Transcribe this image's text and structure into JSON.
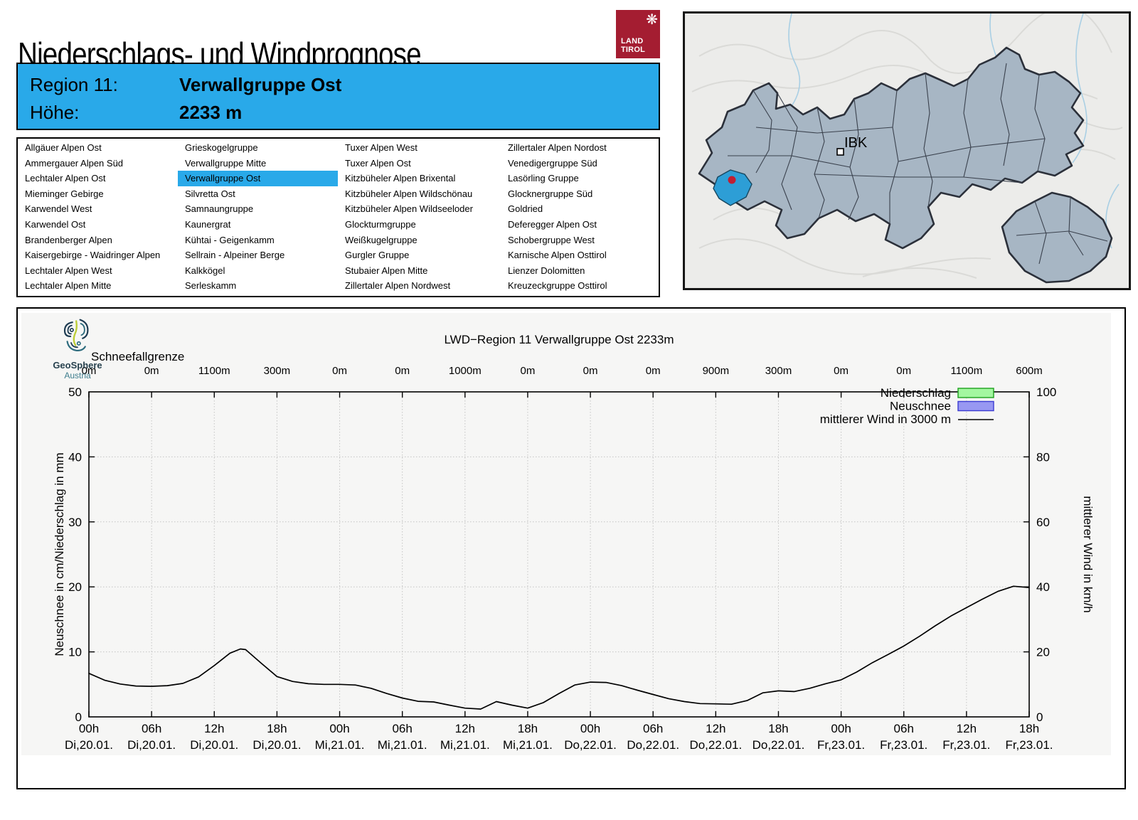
{
  "header": {
    "title": "Niederschlags- und Windprognose",
    "logo": {
      "line1": "LAND",
      "line2": "TIROL",
      "color": "#a41d31",
      "eagle_glyph": "❋"
    }
  },
  "info_box": {
    "accent_color": "#29a9e9",
    "region_label": "Region 11:",
    "region_value": "Verwallgruppe Ost",
    "altitude_label": "Höhe:",
    "altitude_value": "2233 m"
  },
  "region_list": {
    "selected": "Verwallgruppe Ost",
    "highlight_color": "#29a9e9",
    "columns": [
      [
        "Allgäuer Alpen Ost",
        "Ammergauer Alpen Süd",
        "Lechtaler Alpen Ost",
        "Mieminger Gebirge",
        "Karwendel West",
        "Karwendel Ost",
        "Brandenberger Alpen",
        "Kaisergebirge - Waidringer Alpen",
        "Lechtaler Alpen West",
        "Lechtaler Alpen Mitte"
      ],
      [
        "Grieskogelgruppe",
        "Verwallgruppe Mitte",
        "Verwallgruppe Ost",
        "Silvretta Ost",
        "Samnaungruppe",
        "Kaunergrat",
        "Kühtai - Geigenkamm",
        "Sellrain - Alpeiner Berge",
        "Kalkkögel",
        "Serleskamm"
      ],
      [
        "Tuxer Alpen West",
        "Tuxer Alpen Ost",
        "Kitzbüheler Alpen Brixental",
        "Kitzbüheler Alpen Wildschönau",
        "Kitzbüheler Alpen Wildseeloder",
        "Glockturmgruppe",
        "Weißkugelgruppe",
        "Gurgler Gruppe",
        "Stubaier Alpen Mitte",
        "Zillertaler Alpen Nordwest"
      ],
      [
        "Zillertaler Alpen Nordost",
        "Venedigergruppe Süd",
        "Lasörling Gruppe",
        "Glocknergruppe Süd",
        "Goldried",
        "Deferegger Alpen Ost",
        "Schobergruppe West",
        "Karnische Alpen Osttirol",
        "Lienzer Dolomitten",
        "Kreuzeckgruppe Osttirol"
      ]
    ]
  },
  "map": {
    "city_label": "IBK",
    "region_fill": "#a7b6c4",
    "selected_region_fill": "#2d9ed6",
    "marker_color": "#c01f33"
  },
  "attribution": {
    "brand": "GeoSphere",
    "sub": "Austria"
  },
  "chart_data": {
    "type": "line",
    "title": "LWD−Region 11 Verwallgruppe Ost 2233m",
    "snowline_label": "Schneefallgrenze",
    "snowline_values": [
      "0m",
      "0m",
      "1100m",
      "300m",
      "0m",
      "0m",
      "1000m",
      "0m",
      "0m",
      "0m",
      "900m",
      "300m",
      "0m",
      "0m",
      "1100m",
      "600m"
    ],
    "x_ticks": [
      {
        "hour": "00h",
        "date": "Di,20.01."
      },
      {
        "hour": "06h",
        "date": "Di,20.01."
      },
      {
        "hour": "12h",
        "date": "Di,20.01."
      },
      {
        "hour": "18h",
        "date": "Di,20.01."
      },
      {
        "hour": "00h",
        "date": "Mi,21.01."
      },
      {
        "hour": "06h",
        "date": "Mi,21.01."
      },
      {
        "hour": "12h",
        "date": "Mi,21.01."
      },
      {
        "hour": "18h",
        "date": "Mi,21.01."
      },
      {
        "hour": "00h",
        "date": "Do,22.01."
      },
      {
        "hour": "06h",
        "date": "Do,22.01."
      },
      {
        "hour": "12h",
        "date": "Do,22.01."
      },
      {
        "hour": "18h",
        "date": "Do,22.01."
      },
      {
        "hour": "00h",
        "date": "Fr,23.01."
      },
      {
        "hour": "06h",
        "date": "Fr,23.01."
      },
      {
        "hour": "12h",
        "date": "Fr,23.01."
      },
      {
        "hour": "18h",
        "date": "Fr,23.01."
      }
    ],
    "x_span_hours": 90,
    "ylabel_left": "Neuschnee in cm/Niederschlag in mm",
    "ylabel_right": "mittlerer Wind in km/h",
    "ylim_left": [
      0,
      50
    ],
    "ylim_right": [
      0,
      100
    ],
    "yticks_left": [
      0,
      10,
      20,
      30,
      40,
      50
    ],
    "yticks_right": [
      0,
      20,
      40,
      60,
      80,
      100
    ],
    "grid": true,
    "legend_position": "top-right",
    "legend": [
      {
        "label": "Niederschlag",
        "type": "box",
        "fill": "#a3f7a0",
        "stroke": "#1ca01c"
      },
      {
        "label": "Neuschnee",
        "type": "box",
        "fill": "#9898f2",
        "stroke": "#3c3cd2"
      },
      {
        "label": "mittlerer Wind in 3000 m",
        "type": "line",
        "stroke": "#000000"
      }
    ],
    "series": [
      {
        "name": "Niederschlag",
        "unit": "mm",
        "values": []
      },
      {
        "name": "Neuschnee",
        "unit": "cm",
        "values": []
      },
      {
        "name": "mittlerer Wind in 3000 m",
        "unit": "km/h",
        "axis": "right",
        "points": [
          [
            0,
            13.4
          ],
          [
            1.5,
            11.3
          ],
          [
            3,
            10.1
          ],
          [
            4.5,
            9.5
          ],
          [
            6,
            9.4
          ],
          [
            7.5,
            9.6
          ],
          [
            9,
            10.3
          ],
          [
            10.5,
            12.3
          ],
          [
            12,
            15.8
          ],
          [
            13.5,
            19.6
          ],
          [
            14.5,
            20.9
          ],
          [
            15,
            20.7
          ],
          [
            16.5,
            16.5
          ],
          [
            18,
            12.4
          ],
          [
            19.5,
            10.9
          ],
          [
            21,
            10.2
          ],
          [
            22.5,
            10.0
          ],
          [
            24,
            10.0
          ],
          [
            25.5,
            9.8
          ],
          [
            27,
            8.8
          ],
          [
            28.5,
            7.2
          ],
          [
            30,
            5.8
          ],
          [
            31.5,
            4.8
          ],
          [
            33,
            4.6
          ],
          [
            34.5,
            3.6
          ],
          [
            36,
            2.7
          ],
          [
            37.5,
            2.4
          ],
          [
            39,
            4.7
          ],
          [
            40.5,
            3.6
          ],
          [
            42,
            2.7
          ],
          [
            43.5,
            4.4
          ],
          [
            45,
            7.2
          ],
          [
            46.5,
            9.8
          ],
          [
            48,
            10.7
          ],
          [
            49.5,
            10.6
          ],
          [
            51,
            9.6
          ],
          [
            52.5,
            8.2
          ],
          [
            54,
            6.9
          ],
          [
            55.5,
            5.6
          ],
          [
            57,
            4.7
          ],
          [
            58.5,
            4.1
          ],
          [
            60,
            4.0
          ],
          [
            61.5,
            3.9
          ],
          [
            63,
            5.0
          ],
          [
            64.5,
            7.4
          ],
          [
            66,
            8.0
          ],
          [
            67.5,
            7.8
          ],
          [
            69,
            8.8
          ],
          [
            70.5,
            10.2
          ],
          [
            72,
            11.4
          ],
          [
            73.5,
            13.8
          ],
          [
            75,
            16.7
          ],
          [
            76.5,
            19.2
          ],
          [
            78,
            21.8
          ],
          [
            79.5,
            24.8
          ],
          [
            81,
            28.0
          ],
          [
            82.5,
            31.0
          ],
          [
            84,
            33.6
          ],
          [
            85.5,
            36.2
          ],
          [
            87,
            38.6
          ],
          [
            88.5,
            40.2
          ],
          [
            90,
            39.8
          ]
        ]
      }
    ]
  }
}
